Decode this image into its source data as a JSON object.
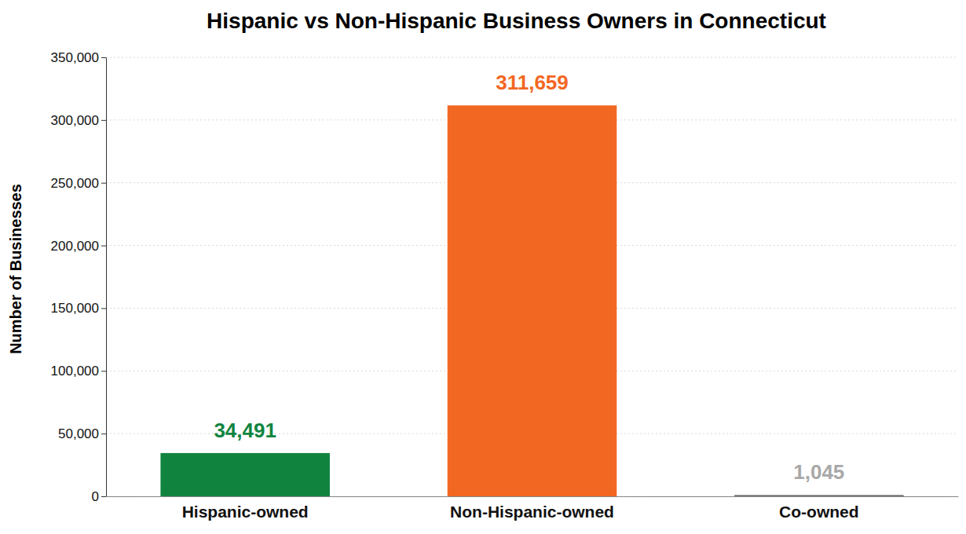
{
  "chart_data": {
    "type": "bar",
    "title": "Hispanic vs Non-Hispanic Business Owners in Connecticut",
    "y_label": "Number of Businesses",
    "categories": [
      "Hispanic-owned",
      "Non-Hispanic-owned",
      "Co-owned"
    ],
    "values": [
      34491,
      311659,
      1045
    ],
    "value_labels": [
      "34,491",
      "311,659",
      "1,045"
    ],
    "colors": [
      "#10843f",
      "#f26722",
      "#a8a8a8"
    ],
    "ylim": [
      0,
      350000
    ],
    "yticks": [
      0,
      {
        "value": 50000,
        "label": "50,000"
      },
      {
        "value": 100000,
        "label": "100,000"
      },
      {
        "value": 150000,
        "label": "150,000"
      },
      {
        "value": 200000,
        "label": "200,000"
      },
      {
        "value": 250000,
        "label": "250,000"
      },
      {
        "value": 300000,
        "label": "300,000"
      },
      {
        "value": 350000,
        "label": "350,000"
      }
    ],
    "grid": true,
    "data_labels": true
  }
}
